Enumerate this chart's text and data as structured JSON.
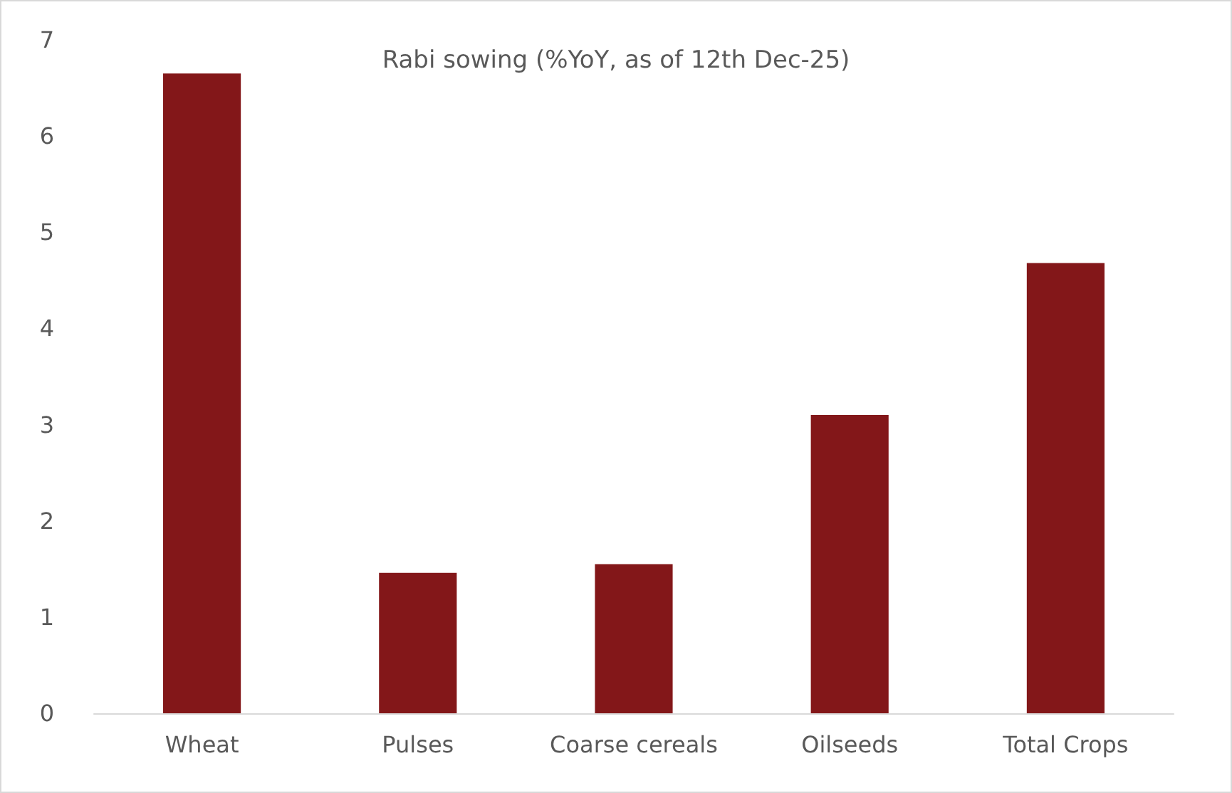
{
  "chart_data": {
    "type": "bar",
    "title": "Rabi sowing (%YoY, as of 12th Dec-25)",
    "categories": [
      "Wheat",
      "Pulses",
      "Coarse cereals",
      "Oilseeds",
      "Total Crops"
    ],
    "values": [
      6.65,
      1.46,
      1.55,
      3.1,
      4.68
    ],
    "color": "#831719",
    "ylim": [
      0,
      7
    ],
    "yticks": [
      0,
      1,
      2,
      3,
      4,
      5,
      6,
      7
    ],
    "grid": false
  }
}
